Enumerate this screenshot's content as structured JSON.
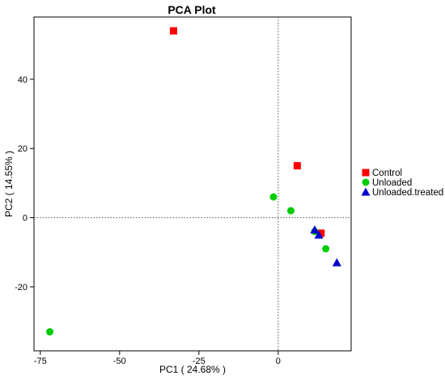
{
  "chart_data": {
    "type": "scatter",
    "title": "PCA Plot",
    "xlabel": "PC1 ( 24.68% )",
    "ylabel": "PC2 ( 14.55% )",
    "xlim": [
      -77,
      23
    ],
    "ylim": [
      -38.5,
      58
    ],
    "xticks": [
      -75,
      -50,
      -25,
      0
    ],
    "yticks": [
      -20,
      0,
      20,
      40
    ],
    "reference_lines": {
      "x": 0,
      "y": 0,
      "style": "dotted"
    },
    "grid": false,
    "legend_position": "right",
    "series": [
      {
        "name": "Control",
        "marker": "square",
        "color": "#ff0000",
        "points": [
          [
            -33,
            54
          ],
          [
            6,
            15
          ],
          [
            13.5,
            -4.5
          ]
        ]
      },
      {
        "name": "Unloaded",
        "marker": "circle",
        "color": "#00cc00",
        "points": [
          [
            -72,
            -33
          ],
          [
            -1.5,
            6
          ],
          [
            4,
            2
          ],
          [
            11.5,
            -4
          ],
          [
            15,
            -9
          ]
        ]
      },
      {
        "name": "Unloaded.treated",
        "marker": "triangle",
        "color": "#0000cc",
        "points": [
          [
            11.5,
            -3.5
          ],
          [
            12.8,
            -5
          ],
          [
            18.5,
            -13
          ]
        ]
      }
    ]
  }
}
